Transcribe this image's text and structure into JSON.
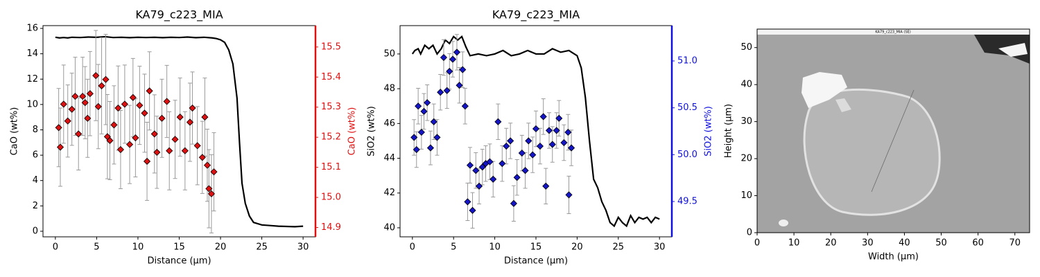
{
  "chart_data": [
    {
      "type": "line",
      "title": "KA79_c223_MIA",
      "xlabel": "Distance (µm)",
      "ylabel": "CaO (wt%)",
      "y2label": "CaO (wt%)",
      "y2color": "#e01010",
      "xlim": [
        -1.5,
        31.5
      ],
      "xticks": [
        0,
        5,
        10,
        15,
        20,
        25,
        30
      ],
      "ylim": [
        -0.44,
        16.22
      ],
      "yticks": [
        0,
        2,
        4,
        6,
        8,
        10,
        12,
        14,
        16
      ],
      "y2lim": [
        14.869,
        15.571
      ],
      "y2ticks": [
        14.9,
        {
          "value": 15,
          "label": "15.0"
        },
        15.1,
        15.2,
        15.3,
        15.4,
        15.5
      ],
      "series": [
        {
          "type": "line",
          "color": "#000000",
          "x": [
            0,
            0.5,
            1,
            1.5,
            2,
            3,
            4,
            5,
            6,
            7,
            8,
            9,
            10,
            11,
            12,
            13,
            14,
            15,
            16,
            17,
            18,
            19,
            19.5,
            20,
            20.5,
            21,
            21.5,
            22,
            22.3,
            22.6,
            23,
            23.5,
            24,
            25,
            26,
            27,
            28,
            29,
            30
          ],
          "values": [
            15.3,
            15.25,
            15.28,
            15.25,
            15.3,
            15.28,
            15.32,
            15.3,
            15.35,
            15.28,
            15.3,
            15.27,
            15.3,
            15.28,
            15.3,
            15.27,
            15.3,
            15.28,
            15.32,
            15.27,
            15.3,
            15.25,
            15.2,
            15.1,
            14.9,
            14.3,
            13.2,
            10.5,
            7.0,
            3.8,
            2.2,
            1.2,
            0.7,
            0.5,
            0.45,
            0.4,
            0.38,
            0.36,
            0.4
          ]
        },
        {
          "type": "scatter",
          "axis": "y2",
          "color": "#dd1111",
          "x": [
            0.4,
            0.6,
            1.0,
            1.5,
            2.0,
            2.4,
            2.8,
            3.3,
            3.6,
            3.9,
            4.2,
            4.9,
            5.2,
            5.6,
            6.1,
            6.3,
            6.6,
            7.1,
            7.6,
            7.9,
            8.4,
            9.0,
            9.4,
            9.7,
            10.2,
            10.8,
            11.1,
            11.4,
            12.0,
            12.3,
            12.9,
            13.5,
            13.8,
            14.5,
            15.1,
            15.7,
            16.3,
            16.6,
            17.2,
            17.8,
            18.1,
            18.4,
            18.6,
            18.9,
            19.2
          ],
          "values": [
            15.232,
            15.167,
            15.31,
            15.254,
            15.293,
            15.336,
            15.211,
            15.336,
            15.315,
            15.263,
            15.345,
            15.405,
            15.302,
            15.371,
            15.392,
            15.202,
            15.189,
            15.241,
            15.297,
            15.159,
            15.31,
            15.176,
            15.332,
            15.198,
            15.306,
            15.28,
            15.12,
            15.354,
            15.211,
            15.15,
            15.263,
            15.319,
            15.155,
            15.193,
            15.267,
            15.155,
            15.25,
            15.297,
            15.172,
            15.133,
            15.267,
            15.107,
            15.029,
            15.012,
            15.085
          ],
          "errors": [
            0.13,
            0.13,
            0.13,
            0.12,
            0.12,
            0.13,
            0.12,
            0.13,
            0.12,
            0.13,
            0.14,
            0.15,
            0.14,
            0.16,
            0.15,
            0.14,
            0.13,
            0.13,
            0.14,
            0.13,
            0.13,
            0.13,
            0.13,
            0.13,
            0.13,
            0.13,
            0.13,
            0.13,
            0.13,
            0.12,
            0.13,
            0.12,
            0.13,
            0.13,
            0.13,
            0.13,
            0.13,
            0.12,
            0.13,
            0.12,
            0.13,
            0.12,
            0.13,
            0.13,
            0.13
          ]
        }
      ]
    },
    {
      "type": "line",
      "title": "KA79_c223_MIA",
      "xlabel": "Distance (µm)",
      "ylabel": "SiO2 (wt%)",
      "y2label": "SiO2 (wt%)",
      "y2color": "#1010dd",
      "xlim": [
        -1.5,
        31.5
      ],
      "xticks": [
        0,
        5,
        10,
        15,
        20,
        25,
        30
      ],
      "ylim": [
        39.48,
        51.63
      ],
      "yticks": [
        40,
        42,
        44,
        46,
        48,
        50
      ],
      "y2lim": [
        49.123,
        51.377
      ],
      "y2ticks": [
        49.5,
        {
          "value": 50,
          "label": "50.0"
        },
        50.5,
        {
          "value": 51,
          "label": "51.0"
        }
      ],
      "series": [
        {
          "type": "line",
          "color": "#000000",
          "x": [
            0,
            0.3,
            0.7,
            1,
            1.5,
            2,
            2.5,
            3,
            3.5,
            4,
            4.5,
            5,
            5.5,
            6,
            6.5,
            7,
            8,
            9,
            10,
            11,
            12,
            13,
            14,
            15,
            16,
            17,
            18,
            19,
            20,
            20.5,
            21,
            21.5,
            22,
            22.5,
            23,
            23.5,
            24,
            24.5,
            25,
            25.5,
            26,
            26.5,
            27,
            27.5,
            28,
            28.5,
            29,
            29.5,
            30
          ],
          "values": [
            50.0,
            50.2,
            50.3,
            50.0,
            50.5,
            50.3,
            50.5,
            50.0,
            50.3,
            50.8,
            50.6,
            51.0,
            50.8,
            51.0,
            50.4,
            49.9,
            50.0,
            49.9,
            50.0,
            50.2,
            49.9,
            50.0,
            50.2,
            50.0,
            50.0,
            50.3,
            50.1,
            50.2,
            49.9,
            49.2,
            47.5,
            45.0,
            42.8,
            42.3,
            41.5,
            41.0,
            40.3,
            40.1,
            40.6,
            40.3,
            40.1,
            40.7,
            40.3,
            40.6,
            40.5,
            40.6,
            40.3,
            40.6,
            40.5
          ]
        },
        {
          "type": "scatter",
          "axis": "y2",
          "color": "#1515c8",
          "x": [
            0.2,
            0.5,
            0.7,
            1.1,
            1.4,
            1.8,
            2.2,
            2.6,
            3.0,
            3.4,
            3.8,
            4.2,
            4.5,
            4.9,
            5.4,
            5.7,
            6.1,
            6.4,
            6.7,
            7.0,
            7.3,
            7.7,
            8.1,
            8.5,
            8.9,
            9.4,
            9.8,
            10.4,
            10.9,
            11.4,
            11.9,
            12.3,
            12.7,
            13.3,
            13.7,
            14.1,
            14.6,
            15.0,
            15.5,
            15.9,
            16.2,
            16.6,
            17.0,
            17.5,
            17.8,
            18.4,
            18.9,
            19.0,
            19.3
          ],
          "values": [
            50.184,
            50.054,
            50.518,
            50.239,
            50.462,
            50.555,
            50.072,
            50.351,
            50.184,
            50.666,
            51.037,
            50.684,
            50.889,
            51.018,
            51.093,
            50.74,
            50.907,
            50.518,
            49.497,
            49.887,
            49.405,
            49.831,
            49.664,
            49.868,
            49.905,
            49.924,
            49.738,
            50.351,
            49.905,
            50.091,
            50.147,
            49.479,
            49.757,
            50.017,
            49.831,
            50.147,
            49.998,
            50.276,
            50.091,
            50.406,
            49.664,
            50.258,
            50.109,
            50.258,
            50.388,
            50.128,
            50.239,
            49.571,
            50.072
          ],
          "errors": [
            0.19,
            0.19,
            0.19,
            0.18,
            0.19,
            0.19,
            0.18,
            0.19,
            0.19,
            0.19,
            0.19,
            0.19,
            0.19,
            0.19,
            0.19,
            0.19,
            0.19,
            0.19,
            0.2,
            0.19,
            0.19,
            0.19,
            0.19,
            0.19,
            0.19,
            0.19,
            0.19,
            0.19,
            0.19,
            0.19,
            0.19,
            0.19,
            0.19,
            0.19,
            0.19,
            0.19,
            0.19,
            0.19,
            0.19,
            0.19,
            0.19,
            0.19,
            0.19,
            0.19,
            0.19,
            0.19,
            0.19,
            0.2,
            0.19
          ]
        }
      ]
    },
    {
      "type": "image",
      "xlabel": "Width (µm)",
      "ylabel": "Height (µm)",
      "image_label": "KA79_c223_MIA (SE)",
      "xlim": [
        0,
        74
      ],
      "xticks": [
        0,
        10,
        20,
        30,
        40,
        50,
        60,
        70
      ],
      "ylim": [
        0,
        55
      ],
      "yticks": [
        0,
        10,
        20,
        30,
        40,
        50
      ]
    }
  ]
}
